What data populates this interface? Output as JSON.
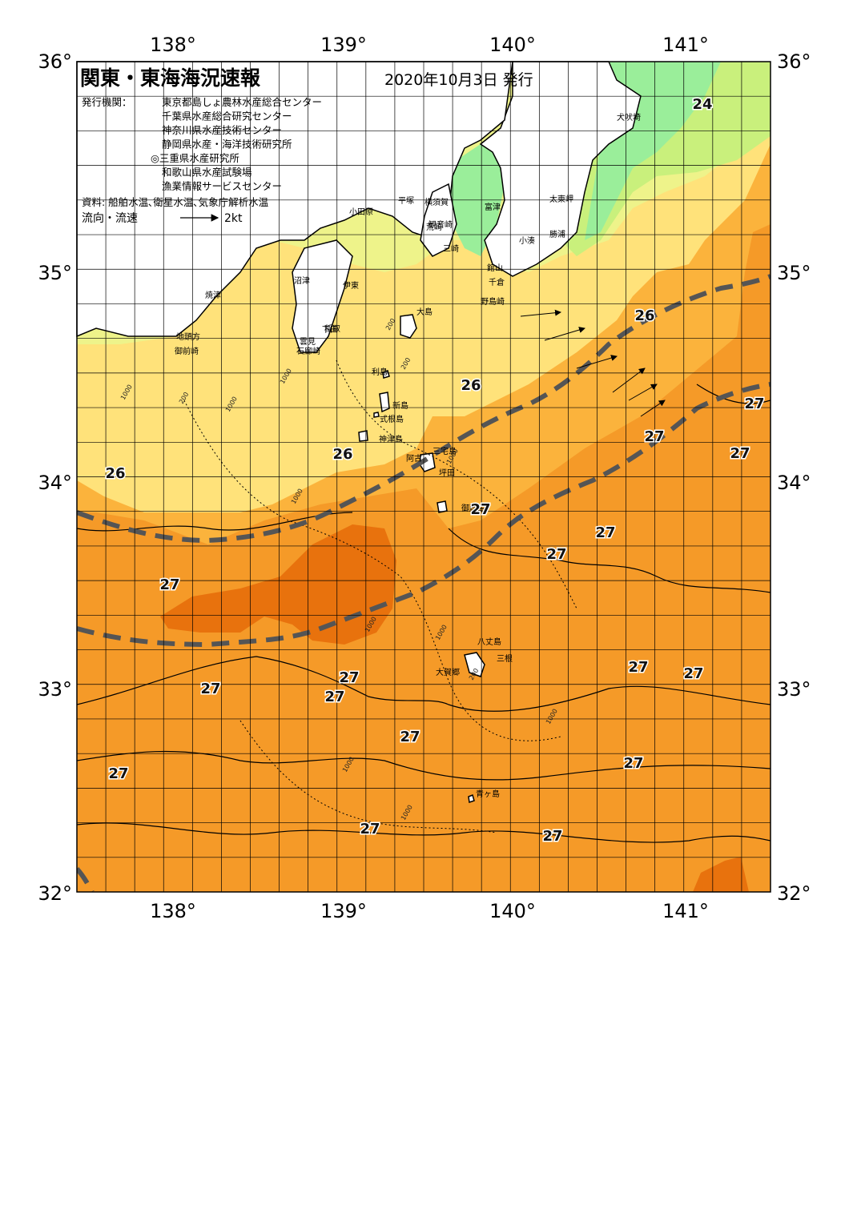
{
  "header": {
    "title": "関東・東海海況速報",
    "date": "2020年10月3日 発行"
  },
  "issuers": {
    "label": "発行機関：",
    "orgs": [
      "東京都島しょ農林水産総合センター",
      "千葉県水産総合研究センター",
      "神奈川県水産技術センター",
      "静岡県水産・海洋技術研究所",
      "◎三重県水産研究所",
      "和歌山県水産試験場",
      "漁業情報サービスセンター"
    ]
  },
  "source_line": "資料: 船舶水温､衛星水温､気象庁解析水温",
  "flow_legend": {
    "label": "流向・流速",
    "scale": "2kt"
  },
  "axes": {
    "lon_ticks": [
      "138°",
      "139°",
      "140°",
      "141°"
    ],
    "lat_left": [
      "36°",
      "35°",
      "34°",
      "33°",
      "32°"
    ],
    "lat_right": [
      "36°",
      "35°",
      "34°",
      "33°",
      "32°"
    ]
  },
  "places": [
    "犬吠埼",
    "太東岬",
    "勝浦",
    "小湊",
    "富津",
    "観音崎",
    "横須賀",
    "平塚",
    "小田原",
    "荒崎",
    "三崎",
    "館山",
    "千倉",
    "野島崎",
    "大島",
    "沼津",
    "焼津",
    "伊東",
    "稲取",
    "下田",
    "雲見",
    "石廊崎",
    "地頭方",
    "御前崎",
    "利島",
    "新島",
    "式根島",
    "神津島",
    "三宅島",
    "阿古",
    "坪田",
    "御蔵島",
    "八丈島",
    "三根",
    "大賀郷",
    "青ヶ島"
  ],
  "isotherm_labels": [
    "24",
    "26",
    "26",
    "26",
    "26",
    "27",
    "27",
    "27",
    "27",
    "27",
    "27",
    "27",
    "27",
    "27",
    "27",
    "27",
    "27",
    "27",
    "27",
    "27",
    "27",
    "27"
  ],
  "depth_labels": [
    "200",
    "1000"
  ],
  "colors": {
    "t21": "#9aee9a",
    "t22": "#c9f07c",
    "t23": "#eef38a",
    "t24": "#ffe27a",
    "t26": "#fbb33c",
    "t27": "#f59a28",
    "t28": "#e8720d",
    "kuroshio": "#555555",
    "land": "#ffffff"
  }
}
